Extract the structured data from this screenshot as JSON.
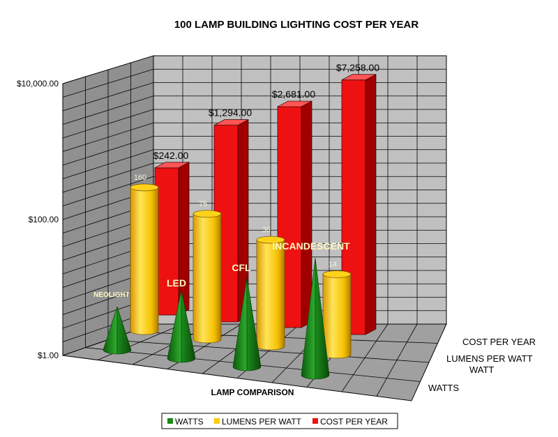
{
  "chart_data": {
    "type": "bar",
    "style": "3d-column-cone-cylinder",
    "title": "100 LAMP BUILDING LIGHTING COST PER YEAR",
    "xlabel": "LAMP COMPARISON",
    "ylabel": "",
    "yscale": "log",
    "ylim": [
      1,
      10000
    ],
    "yticks": [
      "$1.00",
      "$100.00",
      "$10,000.00"
    ],
    "grid": true,
    "legend_position": "bottom",
    "categories": [
      "NEOLIGHT",
      "LED",
      "CFL",
      "INCANDESCENT"
    ],
    "depth_labels": [
      "COST PER YEAR",
      "LUMENS PER WATT",
      "WATTS"
    ],
    "series": [
      {
        "name": "COST PER YEAR",
        "shape": "box",
        "color": "#ee1111",
        "values": [
          242,
          1294,
          2681,
          7258
        ],
        "labels": [
          "$242.00",
          "$1,294.00",
          "$2,681.00",
          "$7,258.00"
        ]
      },
      {
        "name": "LUMENS PER WATT",
        "shape": "cylinder",
        "color": "#ffcc00",
        "values": [
          160,
          75,
          36,
          14
        ],
        "labels": [
          "160",
          "75",
          "36",
          "14"
        ]
      },
      {
        "name": "WATTS",
        "shape": "cone",
        "color": "#1a8a1a",
        "values": [
          4,
          9,
          15,
          60
        ]
      }
    ]
  }
}
